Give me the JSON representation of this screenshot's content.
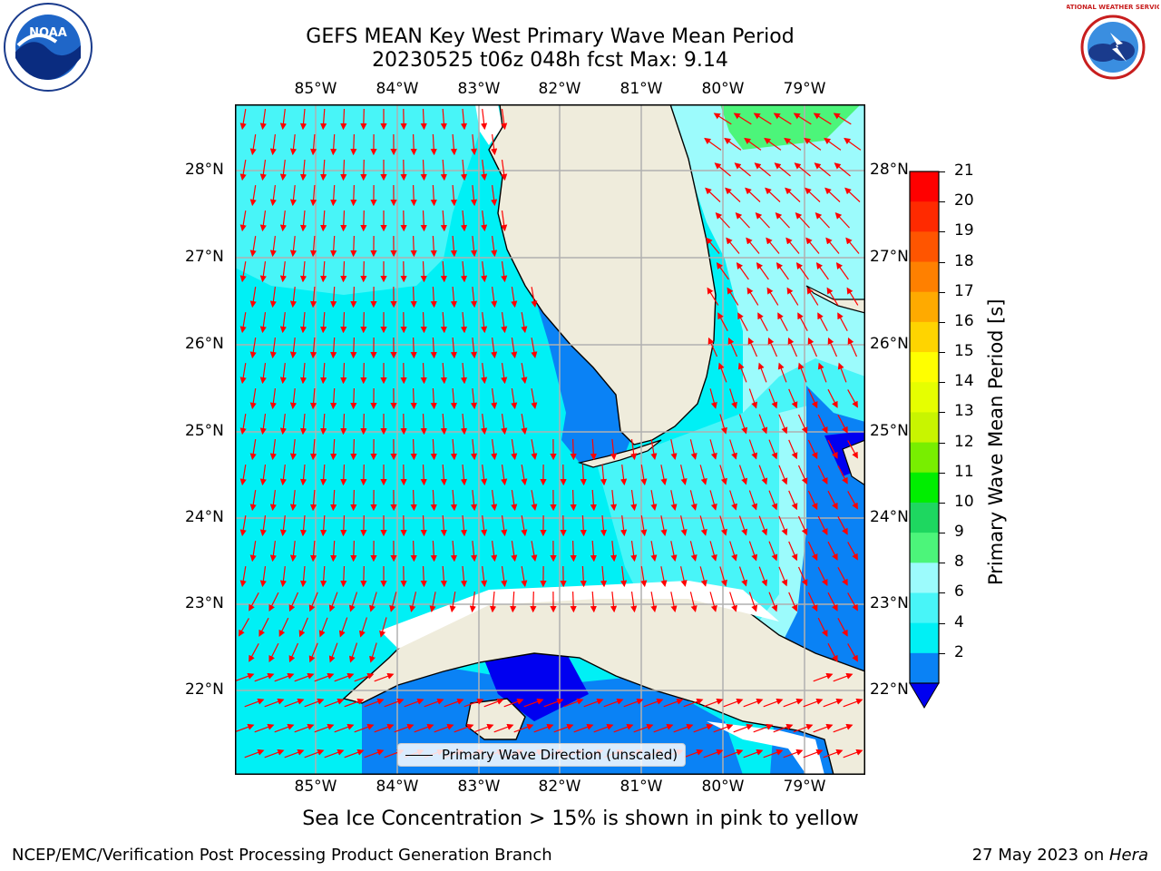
{
  "header": {
    "title_line1": "GEFS MEAN Key West Primary Wave Mean Period",
    "title_line2": "20230525 t06z 048h fcst   Max: 9.14"
  },
  "logos": {
    "left": "NOAA",
    "right": "NATIONAL WEATHER SERVICE"
  },
  "map": {
    "lon_labels": [
      "85°W",
      "84°W",
      "83°W",
      "82°W",
      "81°W",
      "80°W",
      "79°W"
    ],
    "lat_labels": [
      "28°N",
      "27°N",
      "26°N",
      "25°N",
      "24°N",
      "23°N",
      "22°N"
    ],
    "legend_label": "Primary Wave Direction (unscaled)",
    "colors": {
      "land": "#efecdc",
      "cyan": "#00f0f5",
      "light_cyan": "#9cfbfc",
      "aqua": "#48f5f8",
      "mid_blue": "#0a82f5",
      "dark_blue": "#0000f0",
      "green": "#4cf57a",
      "arrow": "#ff0000",
      "grid": "#b0b0b0"
    }
  },
  "colorbar": {
    "ticks": [
      "21",
      "20",
      "19",
      "18",
      "17",
      "16",
      "15",
      "14",
      "13",
      "12",
      "11",
      "10",
      "9",
      "8",
      "6",
      "4",
      "2"
    ],
    "title": "Primary Wave Mean Period [s]",
    "colors_top_to_bottom": [
      "#ff0000",
      "#ff2a00",
      "#ff5500",
      "#ff8000",
      "#ffaa00",
      "#ffd400",
      "#ffff00",
      "#e6ff00",
      "#c8f500",
      "#78ee00",
      "#00ee00",
      "#1ed760",
      "#4cf57a",
      "#9cfbfc",
      "#48f5f8",
      "#00f0f5",
      "#0a82f5"
    ],
    "underflow_color": "#0000f0"
  },
  "bottom_note": "Sea Ice Concentration > 15% is shown in pink to yellow",
  "footer": {
    "left": "NCEP/EMC/Verification Post Processing Product Generation Branch",
    "right_date": "27 May 2023 on ",
    "right_host": "Hera"
  }
}
